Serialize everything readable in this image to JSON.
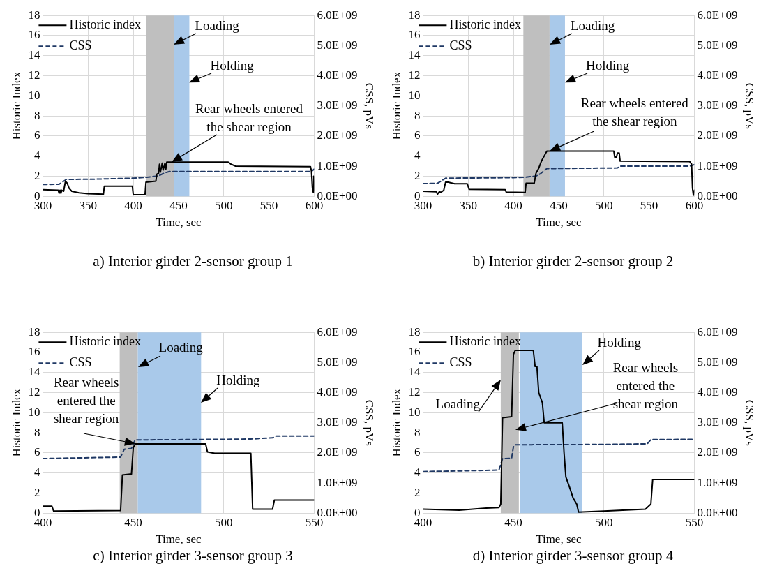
{
  "chart_data": [
    {
      "type": "line",
      "title": "a) Interior girder 2-sensor group 1",
      "xlabel": "Time, sec",
      "ylabel": "Historic Index",
      "y2label": "CSS, pVs",
      "xlim": [
        300,
        600
      ],
      "xticks": [
        300,
        350,
        400,
        450,
        500,
        550,
        600
      ],
      "ylim": [
        0,
        18
      ],
      "yticks": [
        0,
        2,
        4,
        6,
        8,
        10,
        12,
        14,
        16,
        18
      ],
      "y2lim": [
        0,
        6000000000
      ],
      "y2ticks": [
        {
          "value": 0,
          "label": "0.0E+00"
        },
        {
          "value": 1000000000,
          "label": "1.0E+09"
        },
        {
          "value": 2000000000,
          "label": "2.0E+09"
        },
        {
          "value": 3000000000,
          "label": "3.0E+09"
        },
        {
          "value": 4000000000,
          "label": "4.0E+09"
        },
        {
          "value": 5000000000,
          "label": "5.0E+09"
        },
        {
          "value": 6000000000,
          "label": "6.0E+09"
        }
      ],
      "grid": true,
      "legend": "top left",
      "marker": "none",
      "series": [
        {
          "name": "Historic index",
          "color": "#000000",
          "line_style": "solid",
          "x": [
            300,
            317,
            318,
            319,
            320,
            321,
            323,
            325,
            327,
            329,
            332,
            340,
            350,
            367,
            368,
            390,
            399,
            400,
            413,
            414,
            425,
            426,
            428,
            429,
            430,
            432,
            433,
            435,
            436,
            437,
            505,
            508,
            513,
            596,
            597,
            598,
            599,
            599.5,
            600
          ],
          "values": [
            0.65,
            0.6,
            0.3,
            0.6,
            0.3,
            0.6,
            0.5,
            1.5,
            1.3,
            0.8,
            0.5,
            0.35,
            0.25,
            0.2,
            1.0,
            1.0,
            1.0,
            0.15,
            0.15,
            1.4,
            1.5,
            2.2,
            2.3,
            3.2,
            2.4,
            3.3,
            2.6,
            3.3,
            2.7,
            3.4,
            3.4,
            3.2,
            3.0,
            2.95,
            2.5,
            0.9,
            0.4,
            2.0,
            0.6
          ]
        },
        {
          "name": "CSS",
          "color": "#1f3864",
          "line_style": "dashed",
          "axis": "y2",
          "x": [
            300,
            318,
            326,
            360,
            400,
            415,
            428,
            435,
            440,
            597,
            600
          ],
          "values": [
            390000000,
            400000000,
            560000000,
            570000000,
            600000000,
            630000000,
            680000000,
            780000000,
            820000000,
            820000000,
            900000000
          ]
        }
      ],
      "bands": [
        {
          "axis": "x",
          "from": 414,
          "to": 445,
          "label": "Loading",
          "color": "#bfbfbf"
        },
        {
          "axis": "x",
          "from": 445,
          "to": 462,
          "label": "Holding",
          "color": "#a9c9ea"
        }
      ],
      "annotations": [
        {
          "text": "Rear wheels entered the shear region",
          "x": 442,
          "y": 3.4
        }
      ]
    },
    {
      "type": "line",
      "title": "b) Interior girder 2-sensor group 2",
      "xlabel": "Time, sec",
      "ylabel": "Historic Index",
      "y2label": "CSS, pVs",
      "xlim": [
        300,
        600
      ],
      "xticks": [
        300,
        350,
        400,
        450,
        500,
        550,
        600
      ],
      "ylim": [
        0,
        18
      ],
      "yticks": [
        0,
        2,
        4,
        6,
        8,
        10,
        12,
        14,
        16,
        18
      ],
      "y2lim": [
        0,
        6000000000
      ],
      "y2ticks": [
        {
          "value": 0,
          "label": "0.0E+00"
        },
        {
          "value": 1000000000,
          "label": "1.0E+09"
        },
        {
          "value": 2000000000,
          "label": "2.0E+09"
        },
        {
          "value": 3000000000,
          "label": "3.0E+09"
        },
        {
          "value": 4000000000,
          "label": "4.0E+09"
        },
        {
          "value": 5000000000,
          "label": "5.0E+09"
        },
        {
          "value": 6000000000,
          "label": "6.0E+09"
        }
      ],
      "grid": true,
      "legend": "top left",
      "marker": "none",
      "series": [
        {
          "name": "Historic index",
          "color": "#000000",
          "line_style": "solid",
          "x": [
            300,
            315,
            316,
            318,
            320,
            323,
            325,
            328,
            335,
            349,
            351,
            391,
            392,
            413,
            414,
            423,
            425,
            428,
            431,
            434,
            437,
            511,
            512,
            514,
            515,
            517,
            518,
            595,
            597,
            598,
            599,
            600
          ],
          "values": [
            0.5,
            0.45,
            0.2,
            0.45,
            0.4,
            0.6,
            1.4,
            1.4,
            1.25,
            1.25,
            0.7,
            0.65,
            0.42,
            0.38,
            1.3,
            1.3,
            2.3,
            2.8,
            3.5,
            4.0,
            4.5,
            4.5,
            3.9,
            3.9,
            4.3,
            4.3,
            3.5,
            3.45,
            3.2,
            0.8,
            0.1,
            0.6
          ]
        },
        {
          "name": "CSS",
          "color": "#1f3864",
          "line_style": "dashed",
          "axis": "y2",
          "x": [
            300,
            316,
            325,
            400,
            411,
            425,
            430,
            437,
            515,
            518,
            595,
            600
          ],
          "values": [
            420000000,
            430000000,
            600000000,
            620000000,
            630000000,
            670000000,
            750000000,
            920000000,
            940000000,
            1000000000,
            1000000000,
            1050000000
          ]
        }
      ],
      "bands": [
        {
          "axis": "x",
          "from": 411,
          "to": 440,
          "label": "Loading",
          "color": "#bfbfbf"
        },
        {
          "axis": "x",
          "from": 440,
          "to": 457,
          "label": "Holding",
          "color": "#a9c9ea"
        }
      ],
      "annotations": [
        {
          "text": "Rear wheels entered the shear region",
          "x": 440,
          "y": 4.5
        }
      ]
    },
    {
      "type": "line",
      "title": "c) Interior girder 3-sensor group 3",
      "xlabel": "Time, sec",
      "ylabel": "Historic Index",
      "y2label": "CSS, pVs",
      "xlim": [
        400,
        550
      ],
      "xticks": [
        400,
        450,
        500,
        550
      ],
      "ylim": [
        0,
        18
      ],
      "yticks": [
        0,
        2,
        4,
        6,
        8,
        10,
        12,
        14,
        16,
        18
      ],
      "y2lim": [
        0,
        6000000000
      ],
      "y2ticks": [
        {
          "value": 0,
          "label": "0.0E+00"
        },
        {
          "value": 1000000000,
          "label": "1.0E+09"
        },
        {
          "value": 2000000000,
          "label": "2.0E+09"
        },
        {
          "value": 3000000000,
          "label": "3.0E+09"
        },
        {
          "value": 4000000000,
          "label": "4.0E+09"
        },
        {
          "value": 5000000000,
          "label": "5.0E+09"
        },
        {
          "value": 6000000000,
          "label": "6.0E+09"
        }
      ],
      "grid": true,
      "legend": "top left",
      "marker": "none",
      "series": [
        {
          "name": "Historic index",
          "color": "#000000",
          "line_style": "solid",
          "x": [
            400,
            405,
            406,
            443,
            444,
            449,
            450,
            451,
            490,
            491,
            495,
            515,
            516,
            527,
            528,
            550
          ],
          "values": [
            0.7,
            0.7,
            0.2,
            0.25,
            3.8,
            3.9,
            6.5,
            6.9,
            6.9,
            6.1,
            5.95,
            5.95,
            0.4,
            0.4,
            1.3,
            1.3
          ]
        },
        {
          "name": "CSS",
          "color": "#1f3864",
          "line_style": "dashed",
          "axis": "y2",
          "x": [
            400,
            443,
            445,
            449,
            451,
            500,
            515,
            527,
            529,
            550
          ],
          "values": [
            1810000000,
            1860000000,
            2120000000,
            2150000000,
            2430000000,
            2450000000,
            2460000000,
            2500000000,
            2560000000,
            2560000000
          ]
        }
      ],
      "bands": [
        {
          "axis": "x",
          "from": 442.5,
          "to": 452.5,
          "label": "Loading",
          "color": "#bfbfbf"
        },
        {
          "axis": "x",
          "from": 452.5,
          "to": 487.5,
          "label": "Holding",
          "color": "#a9c9ea"
        }
      ],
      "annotations": [
        {
          "text": "Rear wheels entered the shear region",
          "x": 451,
          "y": 6.9
        }
      ]
    },
    {
      "type": "line",
      "title": "d) Interior girder 3-sensor group 4",
      "xlabel": "Time, sec",
      "ylabel": "Historic Index",
      "y2label": "CSS, pVs",
      "xlim": [
        400,
        550
      ],
      "xticks": [
        400,
        450,
        500,
        550
      ],
      "ylim": [
        0,
        18
      ],
      "yticks": [
        0,
        2,
        4,
        6,
        8,
        10,
        12,
        14,
        16,
        18
      ],
      "y2lim": [
        0,
        6000000000
      ],
      "y2ticks": [
        {
          "value": 0,
          "label": "0.0E+00"
        },
        {
          "value": 1000000000,
          "label": "1.0E+09"
        },
        {
          "value": 2000000000,
          "label": "2.0E+09"
        },
        {
          "value": 3000000000,
          "label": "3.0E+09"
        },
        {
          "value": 4000000000,
          "label": "4.0E+09"
        },
        {
          "value": 5000000000,
          "label": "5.0E+09"
        },
        {
          "value": 6000000000,
          "label": "6.0E+09"
        }
      ],
      "grid": true,
      "legend": "top left",
      "marker": "none",
      "series": [
        {
          "name": "Historic index",
          "color": "#000000",
          "line_style": "solid",
          "x": [
            400,
            420,
            435,
            442,
            443,
            444,
            449,
            450,
            451,
            461,
            462,
            463,
            464,
            466,
            467,
            477,
            478,
            479,
            481,
            483,
            485,
            486,
            500,
            523,
            526,
            527,
            550
          ],
          "values": [
            0.4,
            0.3,
            0.5,
            0.55,
            0.9,
            9.5,
            9.6,
            15.8,
            16.2,
            16.2,
            14.6,
            14.6,
            12.0,
            11.0,
            9.0,
            9.0,
            6.0,
            3.6,
            2.6,
            1.5,
            0.9,
            0.1,
            0.2,
            0.4,
            0.9,
            3.35,
            3.35
          ]
        },
        {
          "name": "CSS",
          "color": "#1f3864",
          "line_style": "dashed",
          "axis": "y2",
          "x": [
            400,
            420,
            442,
            444,
            449,
            450,
            451,
            500,
            524,
            526,
            550
          ],
          "values": [
            1380000000,
            1400000000,
            1430000000,
            1810000000,
            1820000000,
            2200000000,
            2270000000,
            2280000000,
            2300000000,
            2440000000,
            2450000000
          ]
        }
      ],
      "bands": [
        {
          "axis": "x",
          "from": 443,
          "to": 453,
          "label": "Loading",
          "color": "#bfbfbf"
        },
        {
          "axis": "x",
          "from": 453.5,
          "to": 488,
          "label": "Holding",
          "color": "#a9c9ea"
        }
      ],
      "annotations": [
        "Rear wheels entered the shear region"
      ]
    }
  ]
}
